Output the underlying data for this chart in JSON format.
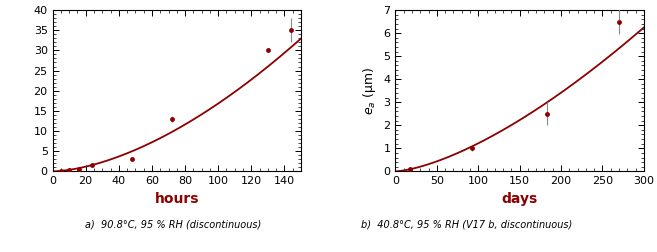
{
  "left": {
    "xlabel": "hours",
    "xlim": [
      0,
      150
    ],
    "ylim": [
      0,
      40
    ],
    "xticks": [
      0,
      20,
      40,
      60,
      80,
      100,
      120,
      140
    ],
    "yticks": [
      0,
      5,
      10,
      15,
      20,
      25,
      30,
      35,
      40
    ],
    "data_x": [
      5,
      10,
      16,
      24,
      48,
      72,
      130,
      144
    ],
    "data_y": [
      0.2,
      0.3,
      0.5,
      1.7,
      3.1,
      13.0,
      30.0,
      35.0
    ],
    "data_yerr": [
      0.05,
      0.05,
      0.1,
      0.2,
      0.3,
      0.7,
      0.5,
      3.0
    ],
    "color": "#8B0000",
    "dot_color": "#8B0000"
  },
  "right": {
    "xlabel": "days",
    "ylabel": "$e_a$ (μm)",
    "xlim": [
      0,
      300
    ],
    "ylim": [
      0,
      7
    ],
    "xticks": [
      0,
      50,
      100,
      150,
      200,
      250,
      300
    ],
    "yticks": [
      0,
      1,
      2,
      3,
      4,
      5,
      6,
      7
    ],
    "data_x": [
      18,
      92,
      183,
      270
    ],
    "data_y": [
      0.1,
      1.0,
      2.5,
      6.5
    ],
    "data_yerr": [
      0.05,
      0.1,
      0.5,
      0.55
    ],
    "color": "#8B0000",
    "dot_color": "#8B0000"
  },
  "caption_left": "a)  90.8°C, 95 % RH (discontinuous)",
  "caption_right": "b)  40.8°C, 95 % RH (V17 b, discontinuous)",
  "background_color": "#ffffff",
  "spine_color": "#000000",
  "tick_color": "#000000",
  "label_color": "#8B0000",
  "label_fontsize": 10,
  "label_fontweight": "bold",
  "tick_fontsize": 8
}
